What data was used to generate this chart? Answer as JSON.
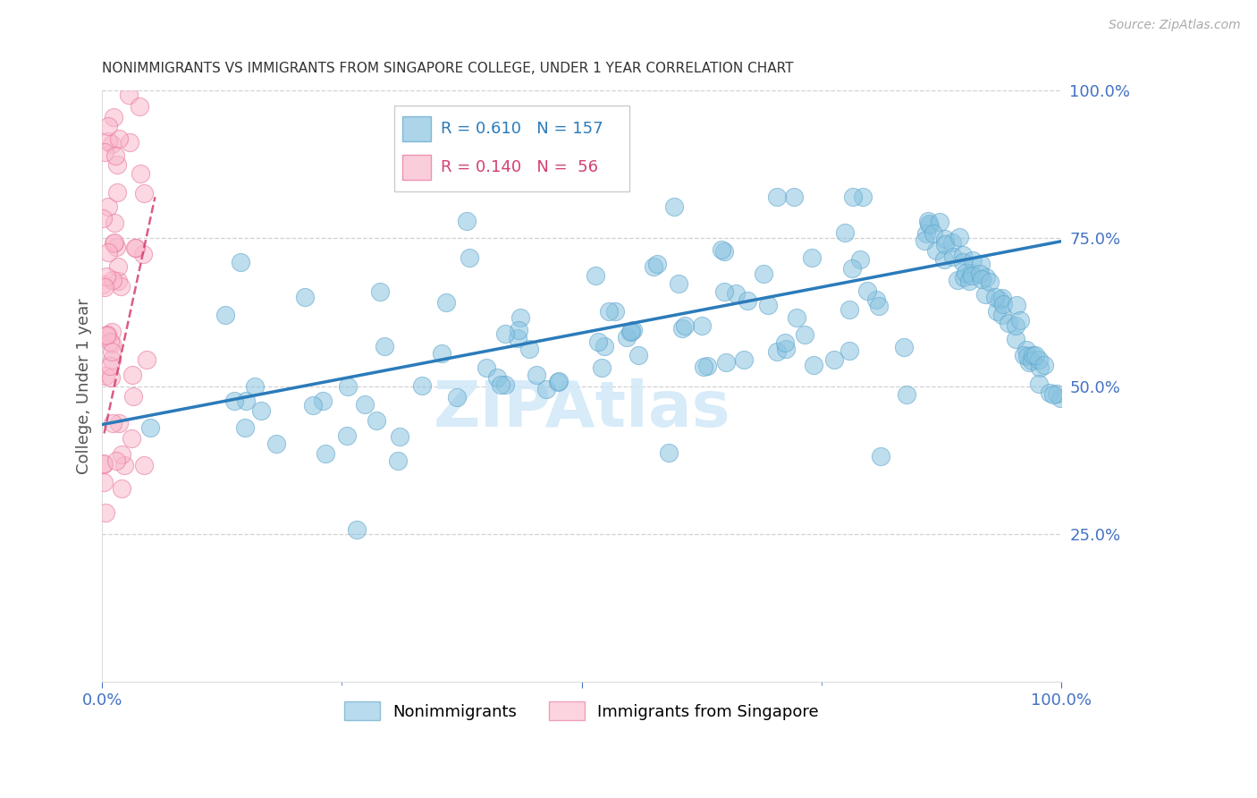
{
  "title": "NONIMMIGRANTS VS IMMIGRANTS FROM SINGAPORE COLLEGE, UNDER 1 YEAR CORRELATION CHART",
  "source": "Source: ZipAtlas.com",
  "ylabel": "College, Under 1 year",
  "blue_scatter_color": "#89c4e1",
  "blue_edge_color": "#5ba3cb",
  "blue_line_color": "#2b7bba",
  "pink_scatter_color": "#f9b8cb",
  "pink_edge_color": "#e87098",
  "pink_line_color": "#d44070",
  "legend_blue_r": "0.610",
  "legend_blue_n": "157",
  "legend_pink_r": "0.140",
  "legend_pink_n": " 56",
  "watermark": "ZIPAtlas",
  "title_color": "#333333",
  "axis_tick_color": "#4472C4",
  "right_label_color": "#4472C4",
  "background_color": "#ffffff",
  "grid_color": "#cccccc",
  "source_color": "#aaaaaa",
  "ylabel_color": "#555555"
}
